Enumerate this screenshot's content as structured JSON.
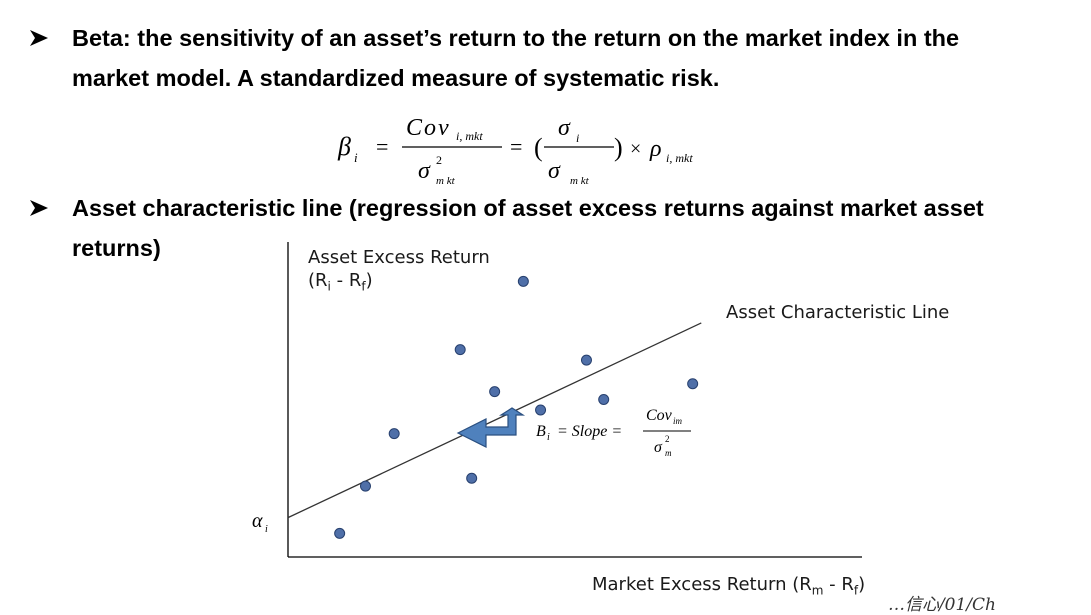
{
  "bullets": [
    {
      "line1": "Beta: the sensitivity of an asset’s return to the return on the market index in the",
      "line2": "market model. A standardized measure of systematic risk."
    },
    {
      "line1": "Asset characteristic line (regression of asset excess returns against market asset",
      "line2": "returns)"
    }
  ],
  "formula": {
    "beta": "β",
    "beta_sub": "i",
    "cov": "Cov",
    "cov_sub": "i, mkt",
    "sigma": "σ",
    "sigma_sq": "2",
    "sigma_sub_mkt": "m kt",
    "sigma_i_sub": "i",
    "sigma_mkt_sub": "m kt",
    "rho": "ρ",
    "rho_sub": "i, mkt",
    "equals": "=",
    "times": "×",
    "open_paren": "(",
    "close_paren": ")"
  },
  "chart": {
    "y_label_line1": "Asset Excess Return",
    "y_label_line2": "(R",
    "y_label_sub_i": "i",
    "y_label_mid": " - R",
    "y_label_sub_f": "f",
    "y_label_end": ")",
    "x_label_main": "Market Excess Return (R",
    "x_label_sub_m": "m",
    "x_label_mid": " - R",
    "x_label_sub_f": "f",
    "x_label_end": ")",
    "line_label": "Asset Characteristic Line",
    "alpha": "α",
    "alpha_sub": "i",
    "slope_B": "B",
    "slope_B_sub": "i",
    "slope_text": " = Slope = ",
    "slope_cov": "Cov",
    "slope_cov_sub": "im",
    "slope_sigma": "σ",
    "slope_sigma_sup": "2",
    "slope_sigma_sub": "m",
    "handwriting": "…信心/01/Ch"
  },
  "colors": {
    "dot_fill": "#4f6fa8",
    "dot_stroke": "#27406e",
    "arrow_fill": "#4f81bd",
    "arrow_stroke": "#2a4f80"
  },
  "chart_data": {
    "type": "scatter",
    "points": [
      {
        "x": 0.9,
        "y": 0.9
      },
      {
        "x": 1.35,
        "y": 2.7
      },
      {
        "x": 1.85,
        "y": 4.7
      },
      {
        "x": 3.0,
        "y": 7.9
      },
      {
        "x": 3.2,
        "y": 3.0
      },
      {
        "x": 3.6,
        "y": 6.3
      },
      {
        "x": 4.1,
        "y": 10.5
      },
      {
        "x": 4.4,
        "y": 5.6
      },
      {
        "x": 5.2,
        "y": 7.5
      },
      {
        "x": 5.5,
        "y": 6.0
      },
      {
        "x": 7.05,
        "y": 6.6
      }
    ],
    "fit_line": {
      "intercept": 1.5,
      "slope": 1.03
    },
    "xlim": [
      0,
      10
    ],
    "ylim": [
      0,
      12
    ],
    "grid": false
  }
}
